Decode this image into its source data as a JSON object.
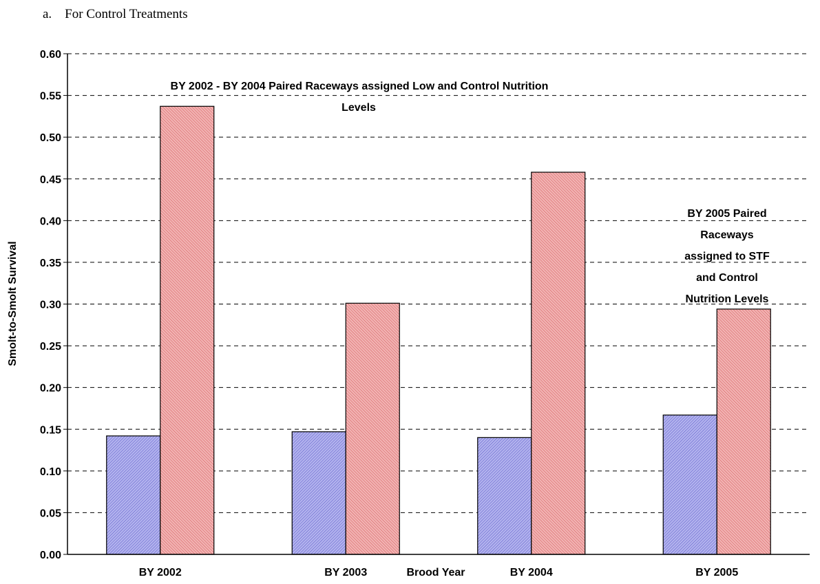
{
  "caption": "a.    For Control Treatments",
  "colors": {
    "series1": "#a9a9e6",
    "series2": "#e9a3a3"
  },
  "chart_data": {
    "type": "bar",
    "categories": [
      "BY 2002",
      "BY 2003",
      "BY 2004",
      "BY 2005"
    ],
    "series": [
      {
        "values": [
          0.142,
          0.147,
          0.14,
          0.167
        ]
      },
      {
        "values": [
          0.537,
          0.301,
          0.458,
          0.294
        ]
      }
    ],
    "xlabel": "Brood Year",
    "ylabel": "Smolt-to-Smolt Survival",
    "ylim": [
      0,
      0.6
    ],
    "yticks": [
      "0.00",
      "0.05",
      "0.10",
      "0.15",
      "0.20",
      "0.25",
      "0.30",
      "0.35",
      "0.40",
      "0.45",
      "0.50",
      "0.55",
      "0.60"
    ],
    "grid": "dashed horizontal",
    "annotations": [
      {
        "lines": [
          "BY 2002 - BY 2004 Paired Raceways assigned Low and Control  Nutrition",
          "Levels"
        ]
      },
      {
        "lines": [
          "BY 2005 Paired",
          "Raceways",
          "assigned to STF",
          "and Control",
          "Nutrition Levels"
        ]
      }
    ]
  }
}
